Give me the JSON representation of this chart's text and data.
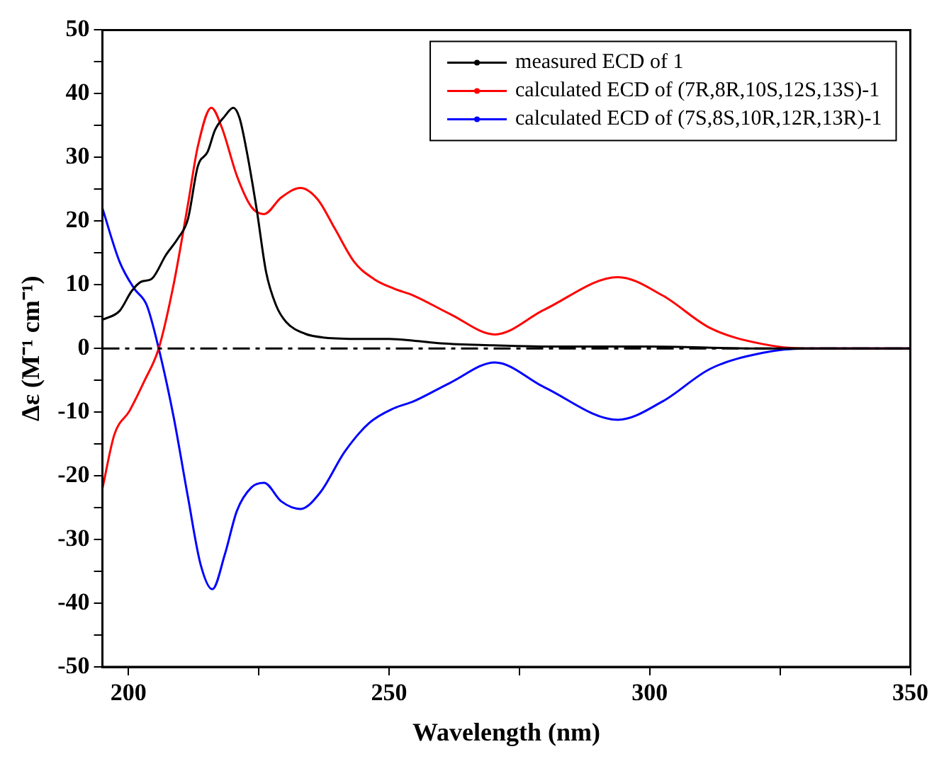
{
  "chart_data": {
    "type": "line",
    "xlabel": "Wavelength (nm)",
    "ylabel": "Δε (M⁻¹ cm⁻¹)",
    "xlim": [
      195,
      350
    ],
    "xticks": [
      200,
      {
        "value": 225,
        "label": null
      },
      250,
      {
        "value": 275,
        "label": null
      },
      300,
      {
        "value": 325,
        "label": null
      },
      350
    ],
    "ylim": [
      -50,
      50
    ],
    "yticks": [
      -50,
      {
        "value": -45,
        "label": null
      },
      -40,
      {
        "value": -35,
        "label": null
      },
      -30,
      {
        "value": -25,
        "label": null
      },
      -20,
      {
        "value": -15,
        "label": null
      },
      -10,
      {
        "value": -5,
        "label": null
      },
      0,
      {
        "value": 5,
        "label": null
      },
      10,
      {
        "value": 15,
        "label": null
      },
      20,
      {
        "value": 25,
        "label": null
      },
      30,
      {
        "value": 35,
        "label": null
      },
      40,
      {
        "value": 45,
        "label": null
      },
      50
    ],
    "legend": "top right",
    "grid": false,
    "ref_lines": [
      {
        "axis": "y",
        "value": 0,
        "color": "#000000",
        "line_style": "dashed"
      }
    ],
    "series": [
      {
        "name": "measured ECD of 1",
        "color": "#000000",
        "x": [
          195,
          198.3,
          200.6,
          202.5,
          204.4,
          207.2,
          209.5,
          211.4,
          213.3,
          215.2,
          216.6,
          218.5,
          220.1,
          221.3,
          222.7,
          224.6,
          226.4,
          228.3,
          230.2,
          233.9,
          237.7,
          245,
          250,
          255,
          260,
          270,
          280,
          300,
          320,
          335,
          350
        ],
        "values": [
          4.5,
          5.9,
          9,
          10.5,
          10.9,
          14.7,
          17.3,
          20.3,
          28.6,
          30.9,
          34.3,
          36.5,
          37.8,
          36.2,
          30.9,
          21.8,
          12,
          6.8,
          4.2,
          2.3,
          1.7,
          1.5,
          1.5,
          1.2,
          0.8,
          0.5,
          0.3,
          0.3,
          0,
          0,
          0
        ]
      },
      {
        "name": "calculated ECD of (7R,8R,10S,12S,13S)-1",
        "color": "#ff0000",
        "x": [
          195,
          197.3,
          200.2,
          203,
          205.8,
          208.6,
          211.4,
          213.3,
          215.9,
          217.9,
          220.8,
          223.6,
          226,
          229.3,
          233,
          236.3,
          239.6,
          243.3,
          247.1,
          250.9,
          254.7,
          261.7,
          270.3,
          279.8,
          293.9,
          302.5,
          311.6,
          321.6,
          329.8,
          350
        ],
        "values": [
          -22,
          -13.5,
          -9.8,
          -5.2,
          0,
          9.8,
          22.6,
          31.7,
          37.8,
          34.7,
          27.1,
          22.2,
          21.1,
          23.7,
          25.2,
          23.4,
          18.8,
          13.6,
          10.9,
          9.4,
          8.3,
          5.4,
          2.2,
          6.1,
          11.2,
          8.3,
          3.2,
          0.7,
          0,
          0
        ]
      },
      {
        "name": "calculated ECD of (7S,8S,10R,12R,13R)-1",
        "color": "#0000ff",
        "x": [
          195,
          198.3,
          201.1,
          203.5,
          205.8,
          208.6,
          211.4,
          213.8,
          216.1,
          218.5,
          220.8,
          223.6,
          226,
          229.3,
          233,
          236.8,
          241.5,
          246.2,
          250.9,
          254.7,
          261.7,
          270.3,
          279.8,
          293.9,
          302.5,
          311.6,
          321.6,
          329.8,
          350
        ],
        "values": [
          22,
          13.6,
          9.4,
          6.8,
          0,
          -10.5,
          -23.3,
          -33.8,
          -37.8,
          -32.3,
          -25.5,
          -21.8,
          -21.1,
          -24,
          -25.2,
          -22.6,
          -16.2,
          -11.7,
          -9.4,
          -8.3,
          -5.4,
          -2.2,
          -6.1,
          -11.2,
          -8.3,
          -3.2,
          -0.7,
          0,
          0
        ]
      }
    ]
  }
}
